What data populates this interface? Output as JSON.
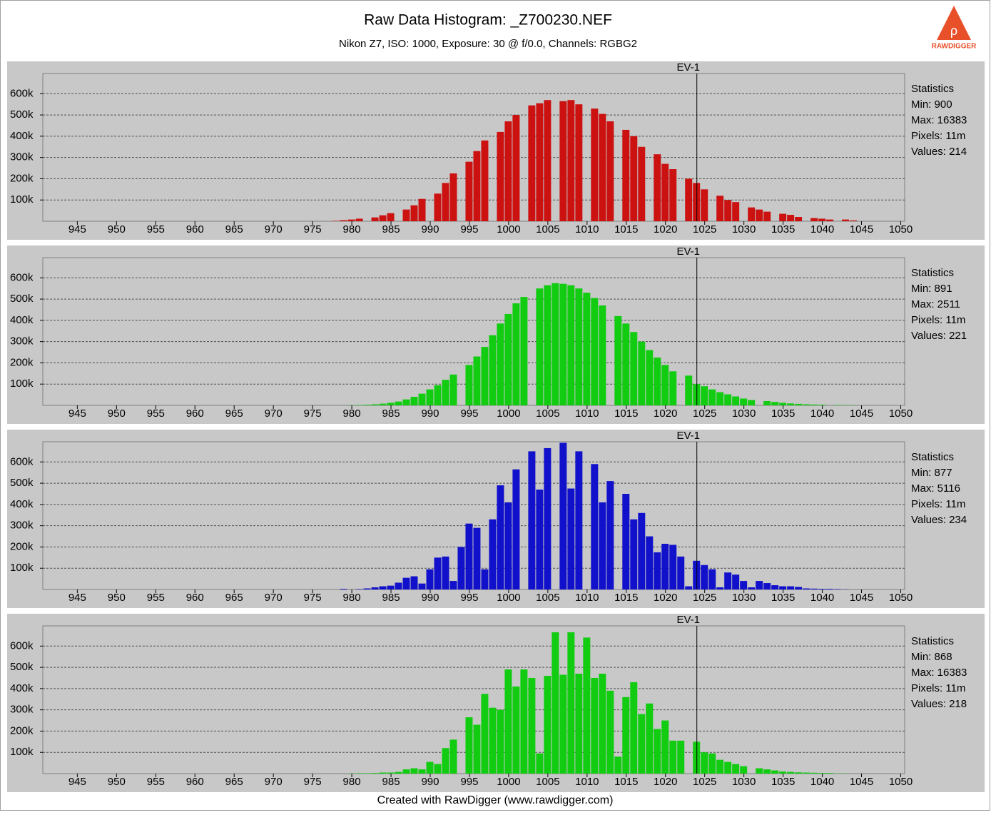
{
  "title": "Raw Data Histogram: _Z700230.NEF",
  "subtitle": "Nikon Z7, ISO: 1000, Exposure: 30 @ f/0.0, Channels: RGBG2",
  "logo": "RAWDIGGER",
  "footer": "Created with RawDigger (www.rawdigger.com)",
  "chart_data": [
    {
      "type": "bar",
      "color": "#cc1111",
      "x": [
        978,
        979,
        980,
        981,
        982,
        983,
        984,
        985,
        986,
        987,
        988,
        989,
        990,
        991,
        992,
        993,
        994,
        995,
        996,
        997,
        998,
        999,
        1000,
        1001,
        1002,
        1003,
        1004,
        1005,
        1006,
        1007,
        1008,
        1009,
        1010,
        1011,
        1012,
        1013,
        1014,
        1015,
        1016,
        1017,
        1018,
        1019,
        1020,
        1021,
        1022,
        1023,
        1024,
        1025,
        1026,
        1027,
        1028,
        1029,
        1030,
        1031,
        1032,
        1033,
        1034,
        1035,
        1036,
        1037,
        1038,
        1039,
        1040,
        1041,
        1042,
        1043,
        1044
      ],
      "values": [
        2000,
        5000,
        8000,
        12000,
        0,
        18000,
        28000,
        38000,
        0,
        55000,
        75000,
        105000,
        0,
        130000,
        180000,
        225000,
        0,
        280000,
        330000,
        380000,
        0,
        420000,
        470000,
        500000,
        0,
        545000,
        555000,
        570000,
        0,
        565000,
        570000,
        550000,
        0,
        530000,
        505000,
        470000,
        0,
        430000,
        400000,
        350000,
        0,
        315000,
        270000,
        245000,
        0,
        200000,
        180000,
        150000,
        0,
        120000,
        100000,
        90000,
        0,
        65000,
        55000,
        45000,
        0,
        35000,
        30000,
        20000,
        0,
        15000,
        12000,
        8000,
        0,
        8000,
        4000
      ],
      "xlim": [
        940.6,
        1050.5
      ],
      "ylim": [
        0,
        695000
      ],
      "xticks": [
        945,
        950,
        955,
        960,
        965,
        970,
        975,
        980,
        985,
        990,
        995,
        1000,
        1005,
        1010,
        1015,
        1020,
        1025,
        1030,
        1035,
        1040,
        1045,
        1050
      ],
      "yticks": [
        {
          "value": 100000,
          "label": "100k"
        },
        {
          "value": 200000,
          "label": "200k"
        },
        {
          "value": 300000,
          "label": "300k"
        },
        {
          "value": 400000,
          "label": "400k"
        },
        {
          "value": 500000,
          "label": "500k"
        },
        {
          "value": 600000,
          "label": "600k"
        }
      ],
      "grid": true,
      "annotation": {
        "text": "EV-1",
        "x": 1024
      },
      "stats_title": "Statistics",
      "stats": [
        "Min: 900",
        "Max: 16383",
        "Pixels: 11m",
        "Values: 214"
      ]
    },
    {
      "type": "bar",
      "color": "#11cc11",
      "x": [
        978,
        979,
        980,
        981,
        982,
        983,
        984,
        985,
        986,
        987,
        988,
        989,
        990,
        991,
        992,
        993,
        994,
        995,
        996,
        997,
        998,
        999,
        1000,
        1001,
        1002,
        1003,
        1004,
        1005,
        1006,
        1007,
        1008,
        1009,
        1010,
        1011,
        1012,
        1013,
        1014,
        1015,
        1016,
        1017,
        1018,
        1019,
        1020,
        1021,
        1022,
        1023,
        1024,
        1025,
        1026,
        1027,
        1028,
        1029,
        1030,
        1031,
        1032,
        1033,
        1034,
        1035,
        1036,
        1037,
        1038,
        1039,
        1040,
        1041,
        1042,
        1043,
        1044
      ],
      "values": [
        0,
        0,
        1000,
        2000,
        3000,
        5000,
        8000,
        12000,
        18000,
        28000,
        40000,
        55000,
        75000,
        95000,
        120000,
        145000,
        0,
        190000,
        230000,
        275000,
        330000,
        385000,
        430000,
        480000,
        510000,
        0,
        550000,
        565000,
        575000,
        572000,
        565000,
        550000,
        530000,
        505000,
        470000,
        0,
        420000,
        385000,
        345000,
        300000,
        260000,
        225000,
        190000,
        160000,
        0,
        140000,
        100000,
        90000,
        75000,
        62000,
        52000,
        42000,
        32000,
        25000,
        0,
        20000,
        16000,
        12000,
        9000,
        7000,
        5000,
        4000,
        3000,
        0,
        2000,
        1500,
        1000
      ],
      "xlim": [
        940.6,
        1050.5
      ],
      "ylim": [
        0,
        695000
      ],
      "xticks": [
        945,
        950,
        955,
        960,
        965,
        970,
        975,
        980,
        985,
        990,
        995,
        1000,
        1005,
        1010,
        1015,
        1020,
        1025,
        1030,
        1035,
        1040,
        1045,
        1050
      ],
      "yticks": [
        {
          "value": 100000,
          "label": "100k"
        },
        {
          "value": 200000,
          "label": "200k"
        },
        {
          "value": 300000,
          "label": "300k"
        },
        {
          "value": 400000,
          "label": "400k"
        },
        {
          "value": 500000,
          "label": "500k"
        },
        {
          "value": 600000,
          "label": "600k"
        }
      ],
      "grid": true,
      "annotation": {
        "text": "EV-1",
        "x": 1024
      },
      "stats_title": "Statistics",
      "stats": [
        "Min: 891",
        "Max: 2511",
        "Pixels: 11m",
        "Values: 221"
      ]
    },
    {
      "type": "bar",
      "color": "#1111cc",
      "x": [
        978,
        979,
        980,
        981,
        982,
        983,
        984,
        985,
        986,
        987,
        988,
        989,
        990,
        991,
        992,
        993,
        994,
        995,
        996,
        997,
        998,
        999,
        1000,
        1001,
        1002,
        1003,
        1004,
        1005,
        1006,
        1007,
        1008,
        1009,
        1010,
        1011,
        1012,
        1013,
        1014,
        1015,
        1016,
        1017,
        1018,
        1019,
        1020,
        1021,
        1022,
        1023,
        1024,
        1025,
        1026,
        1027,
        1028,
        1029,
        1030,
        1031,
        1032,
        1033,
        1034,
        1035,
        1036,
        1037,
        1038,
        1039,
        1040,
        1041,
        1042,
        1043,
        1044
      ],
      "values": [
        0,
        3000,
        0,
        2000,
        5000,
        10000,
        15000,
        18000,
        32000,
        55000,
        62000,
        28000,
        95000,
        150000,
        155000,
        40000,
        200000,
        310000,
        290000,
        95000,
        330000,
        490000,
        410000,
        565000,
        0,
        650000,
        470000,
        665000,
        0,
        690000,
        475000,
        650000,
        0,
        590000,
        410000,
        510000,
        0,
        450000,
        330000,
        360000,
        250000,
        175000,
        215000,
        210000,
        155000,
        15000,
        135000,
        115000,
        95000,
        10000,
        80000,
        70000,
        40000,
        10000,
        40000,
        30000,
        20000,
        15000,
        15000,
        12000,
        5000,
        4000,
        3000,
        3000,
        2000,
        1000,
        0
      ],
      "xlim": [
        940.6,
        1050.5
      ],
      "ylim": [
        0,
        695000
      ],
      "xticks": [
        945,
        950,
        955,
        960,
        965,
        970,
        975,
        980,
        985,
        990,
        995,
        1000,
        1005,
        1010,
        1015,
        1020,
        1025,
        1030,
        1035,
        1040,
        1045,
        1050
      ],
      "yticks": [
        {
          "value": 100000,
          "label": "100k"
        },
        {
          "value": 200000,
          "label": "200k"
        },
        {
          "value": 300000,
          "label": "300k"
        },
        {
          "value": 400000,
          "label": "400k"
        },
        {
          "value": 500000,
          "label": "500k"
        },
        {
          "value": 600000,
          "label": "600k"
        }
      ],
      "grid": true,
      "annotation": {
        "text": "EV-1",
        "x": 1024
      },
      "stats_title": "Statistics",
      "stats": [
        "Min: 877",
        "Max: 5116",
        "Pixels: 11m",
        "Values: 234"
      ]
    },
    {
      "type": "bar",
      "color": "#11cc11",
      "x": [
        978,
        979,
        980,
        981,
        982,
        983,
        984,
        985,
        986,
        987,
        988,
        989,
        990,
        991,
        992,
        993,
        994,
        995,
        996,
        997,
        998,
        999,
        1000,
        1001,
        1002,
        1003,
        1004,
        1005,
        1006,
        1007,
        1008,
        1009,
        1010,
        1011,
        1012,
        1013,
        1014,
        1015,
        1016,
        1017,
        1018,
        1019,
        1020,
        1021,
        1022,
        1023,
        1024,
        1025,
        1026,
        1027,
        1028,
        1029,
        1030,
        1031,
        1032,
        1033,
        1034,
        1035,
        1036,
        1037,
        1038,
        1039,
        1040,
        1041,
        1042,
        1043,
        1044
      ],
      "values": [
        0,
        0,
        1000,
        2000,
        2000,
        3000,
        5000,
        5000,
        8000,
        20000,
        25000,
        20000,
        55000,
        45000,
        120000,
        160000,
        0,
        265000,
        230000,
        375000,
        310000,
        300000,
        490000,
        410000,
        490000,
        450000,
        95000,
        460000,
        665000,
        465000,
        665000,
        470000,
        640000,
        450000,
        470000,
        390000,
        80000,
        360000,
        430000,
        280000,
        330000,
        210000,
        250000,
        155000,
        155000,
        0,
        150000,
        100000,
        95000,
        65000,
        55000,
        45000,
        35000,
        0,
        25000,
        20000,
        15000,
        10000,
        8000,
        6000,
        5000,
        4000,
        3000,
        3000,
        1000,
        1000,
        0
      ],
      "xlim": [
        940.6,
        1050.5
      ],
      "ylim": [
        0,
        695000
      ],
      "xticks": [
        945,
        950,
        955,
        960,
        965,
        970,
        975,
        980,
        985,
        990,
        995,
        1000,
        1005,
        1010,
        1015,
        1020,
        1025,
        1030,
        1035,
        1040,
        1045,
        1050
      ],
      "yticks": [
        {
          "value": 100000,
          "label": "100k"
        },
        {
          "value": 200000,
          "label": "200k"
        },
        {
          "value": 300000,
          "label": "300k"
        },
        {
          "value": 400000,
          "label": "400k"
        },
        {
          "value": 500000,
          "label": "500k"
        },
        {
          "value": 600000,
          "label": "600k"
        }
      ],
      "grid": true,
      "annotation": {
        "text": "EV-1",
        "x": 1024
      },
      "stats_title": "Statistics",
      "stats": [
        "Min: 868",
        "Max: 16383",
        "Pixels: 11m",
        "Values: 218"
      ]
    }
  ]
}
